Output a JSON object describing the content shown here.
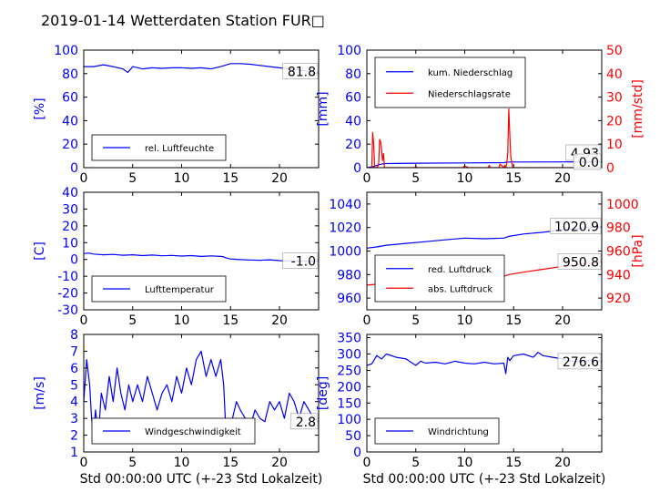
{
  "title": "2019-01-14 Wetterdaten Station FUR□",
  "xlabel": "Std 00:00:00 UTC (+-23 Std Lokalzeit)",
  "colors": {
    "blue": "#0000ff",
    "red": "#ff0000",
    "axis": "#000000"
  },
  "chart_data": [
    {
      "id": "humidity",
      "type": "line",
      "ylabel": "[%]",
      "ylim": [
        0,
        100
      ],
      "yticks": [
        0,
        20,
        40,
        60,
        80,
        100
      ],
      "xlim": [
        0,
        24
      ],
      "xticks": [
        0,
        5,
        10,
        15,
        20
      ],
      "legend": {
        "position": "lower-left"
      },
      "series": [
        {
          "name": "rel. Luftfeuchte",
          "color": "#0000ff",
          "x": [
            0,
            1,
            2,
            3,
            4,
            4.5,
            5,
            6,
            7,
            8,
            9,
            10,
            11,
            12,
            13,
            14,
            15,
            16,
            17,
            18,
            19,
            20,
            21,
            22,
            23,
            23.6,
            24
          ],
          "y": [
            86,
            86,
            87.5,
            86,
            84,
            81,
            86,
            84,
            85,
            84.5,
            85,
            85,
            84.5,
            85,
            84,
            86,
            88.5,
            88.5,
            88,
            87,
            86,
            85,
            84,
            83,
            82,
            79.5,
            81.8
          ]
        }
      ],
      "annotations": [
        {
          "text": "81.8",
          "x": 24,
          "y": 81.8
        }
      ]
    },
    {
      "id": "precipitation",
      "type": "line",
      "ylabel": "[mm]",
      "ylim": [
        0,
        100
      ],
      "yticks": [
        0,
        20,
        40,
        60,
        80,
        100
      ],
      "ylabel_right": "[mm/std]",
      "ylim_right": [
        0,
        50
      ],
      "yticks_right": [
        0,
        10,
        20,
        30,
        40,
        50
      ],
      "xlim": [
        0,
        24
      ],
      "xticks": [
        0,
        5,
        10,
        15,
        20
      ],
      "legend": {
        "position": "upper-left"
      },
      "series": [
        {
          "name": "kum. Niederschlag",
          "color": "#0000ff",
          "axis": "left",
          "x": [
            0,
            0.7,
            1.2,
            1.6,
            2,
            5,
            10,
            14,
            14.5,
            20,
            24
          ],
          "y": [
            0,
            1,
            2.5,
            3.2,
            3.5,
            3.8,
            4.0,
            4.3,
            4.8,
            4.9,
            4.93
          ]
        },
        {
          "name": "Niederschlagsrate",
          "color": "#ff0000",
          "axis": "right",
          "x": [
            0,
            0.5,
            0.6,
            0.7,
            0.8,
            1.0,
            1.2,
            1.3,
            1.4,
            1.5,
            1.6,
            1.7,
            1.8,
            2.0,
            4.9,
            5.0,
            5.1,
            9.8,
            10.0,
            10.2,
            10.4,
            12.4,
            12.5,
            12.6,
            13.5,
            13.6,
            14.0,
            14.1,
            14.2,
            14.3,
            14.4,
            14.5,
            14.7,
            14.9,
            24
          ],
          "y": [
            0,
            0,
            15,
            10,
            0,
            0,
            1,
            12,
            11,
            8,
            3,
            6,
            0,
            0,
            0,
            0.6,
            0,
            0,
            0.8,
            0.4,
            0,
            0,
            1,
            0,
            0,
            1.5,
            0,
            1,
            0,
            2,
            6,
            25,
            5,
            0,
            0
          ]
        }
      ],
      "annotations": [
        {
          "text": "4.93",
          "x": 24,
          "y": 4.93
        },
        {
          "text": "0.0",
          "x": 24,
          "y": 0
        }
      ]
    },
    {
      "id": "temperature",
      "type": "line",
      "ylabel": "[C]",
      "ylim": [
        -30,
        40
      ],
      "yticks": [
        -30,
        -20,
        -10,
        0,
        10,
        20,
        30,
        40
      ],
      "xlim": [
        0,
        24
      ],
      "xticks": [
        0,
        5,
        10,
        15,
        20
      ],
      "legend": {
        "position": "lower-left"
      },
      "series": [
        {
          "name": "Lufttemperatur",
          "color": "#0000ff",
          "x": [
            0,
            0.5,
            1,
            2,
            3,
            4,
            5,
            6,
            7,
            8,
            9,
            10,
            11,
            12,
            13,
            14,
            14.3,
            14.6,
            15,
            16,
            17,
            18,
            19,
            20,
            21,
            22,
            23,
            24
          ],
          "y": [
            3.5,
            3.8,
            3.2,
            2.8,
            3.0,
            2.5,
            2.8,
            2.3,
            2.6,
            2.2,
            2.4,
            2.0,
            2.3,
            1.8,
            2.1,
            1.8,
            1.5,
            0.8,
            0.3,
            -0.1,
            -0.3,
            -0.5,
            -0.2,
            -0.7,
            -0.9,
            -0.8,
            -1.1,
            -1.0
          ]
        }
      ],
      "annotations": [
        {
          "text": "-1.0",
          "x": 24,
          "y": -1.0
        }
      ]
    },
    {
      "id": "pressure",
      "type": "line",
      "ylim": [
        950,
        1050
      ],
      "yticks": [
        960,
        980,
        1000,
        1020,
        1040
      ],
      "ylabel_right": "[hPa]",
      "ylim_right": [
        910,
        1010
      ],
      "yticks_right": [
        920,
        940,
        960,
        980,
        1000
      ],
      "xlim": [
        0,
        24
      ],
      "xticks": [
        0,
        5,
        10,
        15,
        20
      ],
      "legend": {
        "position": "lower-left"
      },
      "series": [
        {
          "name": "red. Luftdruck",
          "color": "#0000ff",
          "axis": "left",
          "x": [
            0,
            1,
            2,
            4,
            6,
            8,
            10,
            12,
            14,
            14.5,
            16,
            18,
            20,
            22,
            24
          ],
          "y": [
            1002.5,
            1003.5,
            1005,
            1006.5,
            1008,
            1009.5,
            1011,
            1010.5,
            1011,
            1012.5,
            1014.5,
            1016,
            1018,
            1019.5,
            1020.9
          ]
        },
        {
          "name": "abs. Luftdruck",
          "color": "#ff0000",
          "axis": "right",
          "x": [
            0,
            2,
            4,
            6,
            8,
            10,
            12,
            14,
            14.5,
            16,
            18,
            20,
            22,
            24
          ],
          "y": [
            931,
            932.5,
            934,
            935.5,
            937,
            938.5,
            938,
            938.5,
            940,
            942,
            944.5,
            947,
            949,
            950.8
          ]
        }
      ],
      "annotations": [
        {
          "text": "1020.9",
          "x": 24,
          "y": 1020.9
        },
        {
          "text": "950.8",
          "x": 24,
          "y": 950.8,
          "axis": "right"
        }
      ]
    },
    {
      "id": "wind_speed",
      "type": "line",
      "ylabel": "[m/s]",
      "ylim": [
        1,
        8
      ],
      "yticks": [
        1,
        2,
        3,
        4,
        5,
        6,
        7,
        8
      ],
      "xlim": [
        0,
        24
      ],
      "xticks": [
        0,
        5,
        10,
        15,
        20
      ],
      "xlabel": "Std 00:00:00 UTC (+-23 Std Lokalzeit)",
      "legend": {
        "position": "lower-center"
      },
      "series": [
        {
          "name": "Windgeschwindigkeit",
          "color": "#0000ff",
          "x": [
            0,
            0.3,
            0.6,
            0.8,
            1.0,
            1.2,
            1.5,
            1.8,
            2.2,
            2.6,
            3.0,
            3.4,
            3.8,
            4.2,
            4.6,
            5.0,
            5.5,
            6.0,
            6.5,
            7.0,
            7.5,
            8.0,
            8.5,
            9.0,
            9.5,
            10.0,
            10.5,
            11.0,
            11.5,
            12.0,
            12.5,
            13.0,
            13.5,
            14.0,
            14.3,
            14.5,
            14.8,
            15.2,
            15.6,
            16.0,
            16.5,
            17.0,
            17.5,
            18.0,
            18.5,
            19.0,
            19.5,
            20.0,
            20.5,
            21.0,
            21.5,
            22.0,
            22.5,
            23.0,
            23.5,
            24.0
          ],
          "y": [
            4.0,
            6.5,
            5.0,
            3.0,
            2.0,
            3.5,
            2.0,
            4.5,
            3.5,
            5.5,
            4.0,
            6.0,
            4.5,
            3.5,
            5.0,
            4.0,
            5.0,
            4.0,
            5.5,
            4.5,
            3.5,
            4.5,
            5.0,
            4.0,
            5.5,
            4.5,
            6.0,
            5.0,
            6.5,
            7.0,
            5.5,
            6.5,
            5.5,
            6.5,
            5.0,
            2.5,
            1.8,
            3.0,
            4.0,
            3.5,
            3.0,
            2.5,
            3.5,
            3.0,
            2.8,
            4.0,
            3.5,
            4.0,
            3.0,
            4.5,
            4.0,
            3.0,
            4.0,
            3.5,
            3.0,
            2.8
          ]
        }
      ],
      "annotations": [
        {
          "text": "2.8",
          "x": 24,
          "y": 2.8
        }
      ]
    },
    {
      "id": "wind_direction",
      "type": "line",
      "ylabel": "[deg]",
      "ylim": [
        0,
        360
      ],
      "yticks": [
        0,
        50,
        100,
        150,
        200,
        250,
        300,
        350
      ],
      "xlim": [
        0,
        24
      ],
      "xticks": [
        0,
        5,
        10,
        15,
        20
      ],
      "xlabel": "Std 00:00:00 UTC (+-23 Std Lokalzeit)",
      "legend": {
        "position": "lower-left"
      },
      "series": [
        {
          "name": "Windrichtung",
          "color": "#0000ff",
          "x": [
            0,
            0.5,
            1.0,
            1.5,
            2.0,
            3.0,
            4.0,
            5.0,
            5.5,
            6.0,
            7.0,
            8.0,
            9.0,
            10.0,
            11.0,
            12.0,
            13.0,
            14.0,
            14.2,
            14.4,
            14.6,
            15.0,
            16.0,
            17.0,
            17.5,
            18.0,
            19.0,
            20.0,
            21.0,
            22.0,
            23.0,
            24.0
          ],
          "y": [
            265,
            270,
            295,
            285,
            300,
            290,
            285,
            265,
            278,
            272,
            275,
            270,
            278,
            272,
            270,
            275,
            270,
            272,
            240,
            290,
            280,
            295,
            300,
            290,
            305,
            295,
            290,
            285,
            278,
            276,
            282,
            276.6
          ]
        }
      ],
      "annotations": [
        {
          "text": "276.6",
          "x": 24,
          "y": 276.6
        }
      ]
    }
  ]
}
